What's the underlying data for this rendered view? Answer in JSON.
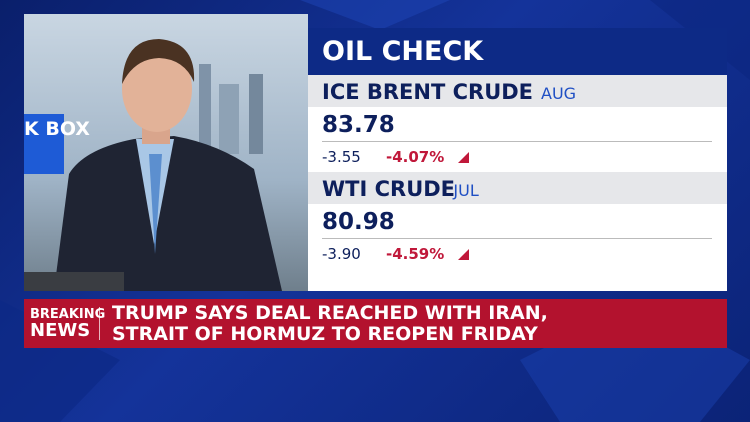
{
  "background_text": "K BOX",
  "panel": {
    "title": "OIL CHECK",
    "items": [
      {
        "name": "ICE BRENT CRUDE",
        "month": "AUG",
        "price": "83.78",
        "change": "-3.55",
        "percent": "-4.07%"
      },
      {
        "name": "WTI CRUDE",
        "month": "JUL",
        "price": "80.98",
        "change": "-3.90",
        "percent": "-4.59%"
      }
    ]
  },
  "banner": {
    "label_top": "BREAKING",
    "label_bottom": "NEWS",
    "headline_1": "TRUMP SAYS DEAL REACHED WITH IRAN,",
    "headline_2": "STRAIT OF HORMUZ TO REOPEN FRIDAY"
  }
}
